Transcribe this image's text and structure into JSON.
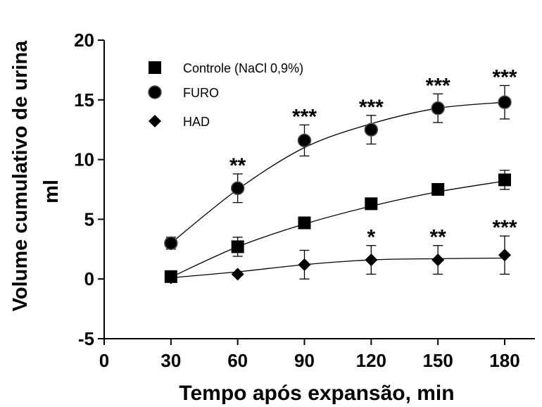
{
  "chart_data": {
    "type": "line",
    "title": "",
    "xlabel": "Tempo após expansão, min",
    "ylabel_lines": [
      "Volume cumulativo de urina",
      "ml"
    ],
    "xlim": [
      0,
      190
    ],
    "ylim": [
      -5,
      20
    ],
    "x_ticks": [
      0,
      30,
      60,
      90,
      120,
      150,
      180
    ],
    "x_tick_labels": [
      "0",
      "30",
      "60",
      "90",
      "120",
      "150",
      "180"
    ],
    "y_ticks": [
      -5,
      0,
      5,
      10,
      15,
      20
    ],
    "y_tick_labels": [
      "-5",
      "0",
      "5",
      "10",
      "15",
      "20"
    ],
    "grid": false,
    "legend_position": "top-left",
    "x": [
      30,
      60,
      90,
      120,
      150,
      180
    ],
    "series": [
      {
        "name": "Controle (NaCl 0,9%)",
        "marker": "square",
        "values": [
          0.2,
          2.7,
          4.7,
          6.3,
          7.5,
          8.3
        ],
        "errors": [
          0.2,
          0.8,
          0.4,
          0.4,
          0.4,
          0.8
        ],
        "fit": [
          0.15,
          2.7,
          4.6,
          6.1,
          7.3,
          8.2
        ],
        "significance": [
          "",
          "",
          "",
          "",
          "",
          ""
        ]
      },
      {
        "name": "FURO",
        "marker": "circle",
        "values": [
          3.0,
          7.6,
          11.6,
          12.5,
          14.3,
          14.8
        ],
        "errors": [
          0.5,
          1.2,
          1.3,
          1.2,
          1.2,
          1.4
        ],
        "fit": [
          3.0,
          7.5,
          11.0,
          13.0,
          14.3,
          14.8
        ],
        "significance": [
          "",
          "**",
          "***",
          "***",
          "***",
          "***"
        ]
      },
      {
        "name": "HAD",
        "marker": "diamond",
        "values": [
          0.1,
          0.4,
          1.2,
          1.6,
          1.6,
          2.0
        ],
        "errors": [
          0.1,
          0.1,
          1.2,
          1.2,
          1.2,
          1.6
        ],
        "fit": [
          0.1,
          0.6,
          1.2,
          1.6,
          1.7,
          1.75
        ],
        "significance": [
          "",
          "",
          "",
          "*",
          "**",
          "***"
        ]
      }
    ],
    "colors": {
      "marker": "#000000",
      "line": "#000000",
      "background": "#ffffff"
    }
  }
}
